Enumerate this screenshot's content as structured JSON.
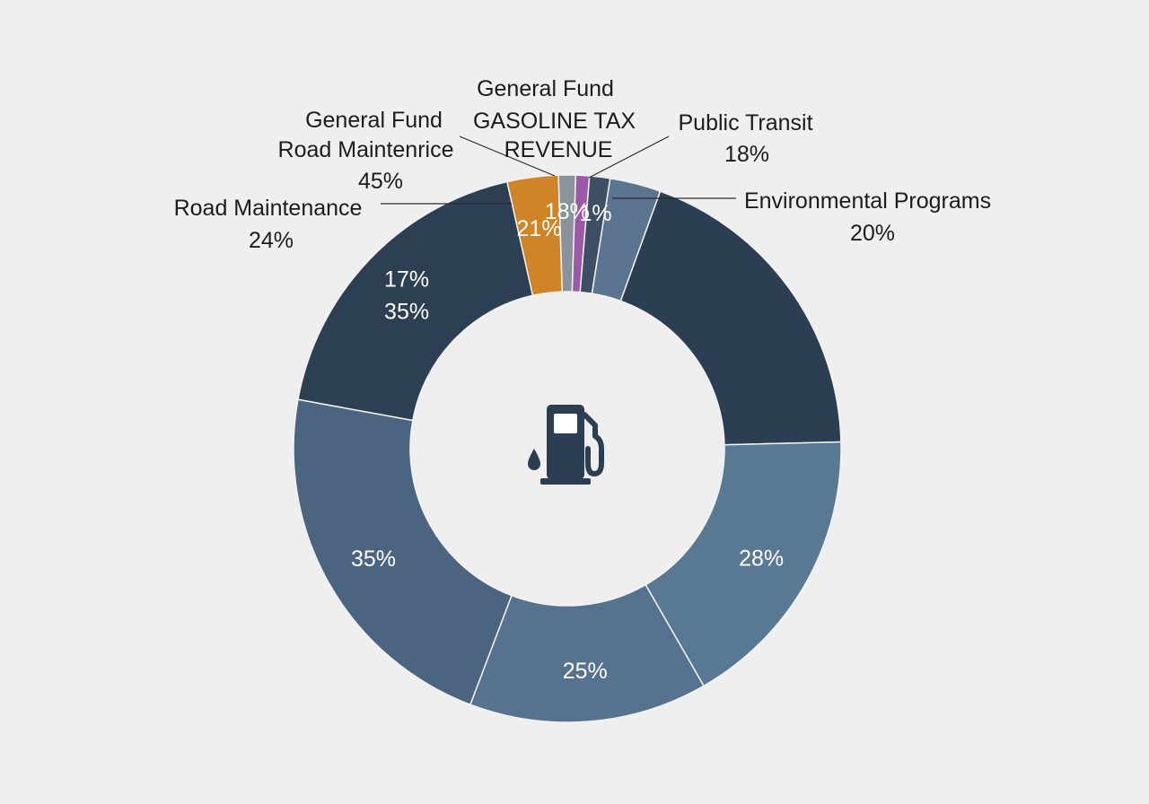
{
  "chart_data": {
    "type": "pie",
    "donut": true,
    "center_icon": "gas-pump-icon",
    "slices": [
      {
        "value": 3.0,
        "color": "#5b7590",
        "inner_label": ""
      },
      {
        "value": 19.0,
        "color": "#2b3e52",
        "inner_label": ""
      },
      {
        "value": 17.0,
        "color": "#587893",
        "inner_label": "28%"
      },
      {
        "value": 14.0,
        "color": "#56728e",
        "inner_label": "25%"
      },
      {
        "value": 22.0,
        "color": "#4b6580",
        "inner_label": "35%"
      },
      {
        "value": 18.5,
        "color": "#2c3f53",
        "inner_label": [
          "17%",
          "35%"
        ]
      },
      {
        "value": 3.0,
        "color": "#d08428",
        "inner_label": "21%"
      },
      {
        "value": 1.0,
        "color": "#8a939b",
        "inner_label": "18%"
      },
      {
        "value": 0.8,
        "color": "#9b59a8",
        "inner_label": ""
      },
      {
        "value": 1.2,
        "color": "#3c4f65",
        "inner_label": "1%"
      }
    ],
    "annotations": [
      {
        "lines": [
          "General Fund",
          "GASOLINE TAX",
          "REVENUE"
        ]
      },
      {
        "lines": [
          "General Fund",
          "Road Maintenrice",
          "45%"
        ]
      },
      {
        "lines": [
          "Road Maintenance",
          "24%"
        ]
      },
      {
        "lines": [
          "Public Transit",
          "18%"
        ]
      },
      {
        "lines": [
          "Environmental Programs",
          "20%"
        ]
      }
    ]
  }
}
